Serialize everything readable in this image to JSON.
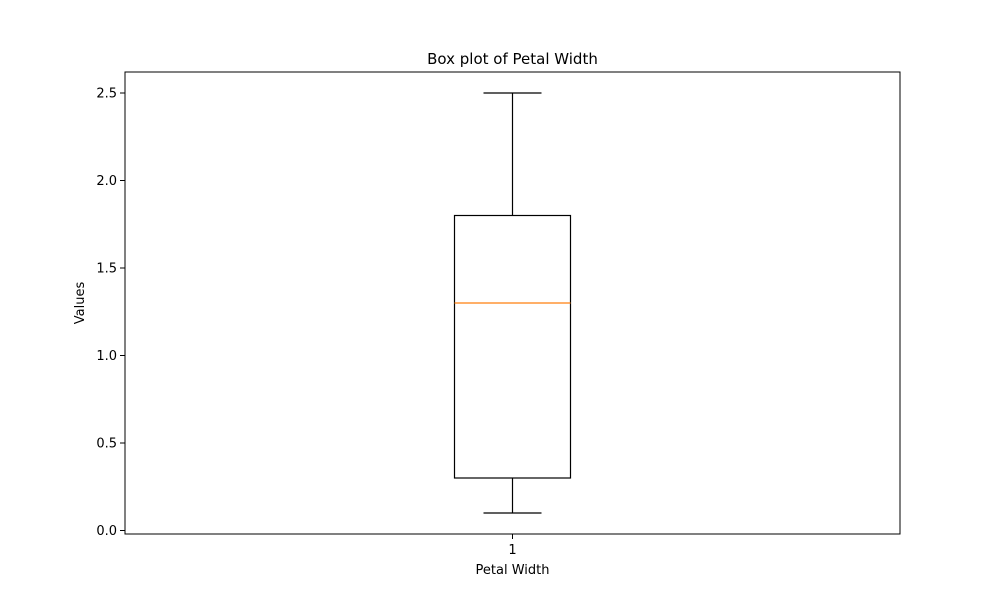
{
  "chart_data": {
    "type": "boxplot",
    "title": "Box plot of Petal Width",
    "xlabel": "Petal Width",
    "ylabel": "Values",
    "categories": [
      "1"
    ],
    "boxes": [
      {
        "category": "1",
        "whisker_low": 0.1,
        "q1": 0.3,
        "median": 1.3,
        "q3": 1.8,
        "whisker_high": 2.5,
        "outliers": []
      }
    ],
    "yticks": [
      "0.0",
      "0.5",
      "1.0",
      "1.5",
      "2.0",
      "2.5"
    ],
    "ylim": [
      -0.02,
      2.62
    ],
    "grid": false,
    "colors": {
      "box": "#000000",
      "median": "#ff7f0e",
      "axes": "#000000"
    }
  }
}
